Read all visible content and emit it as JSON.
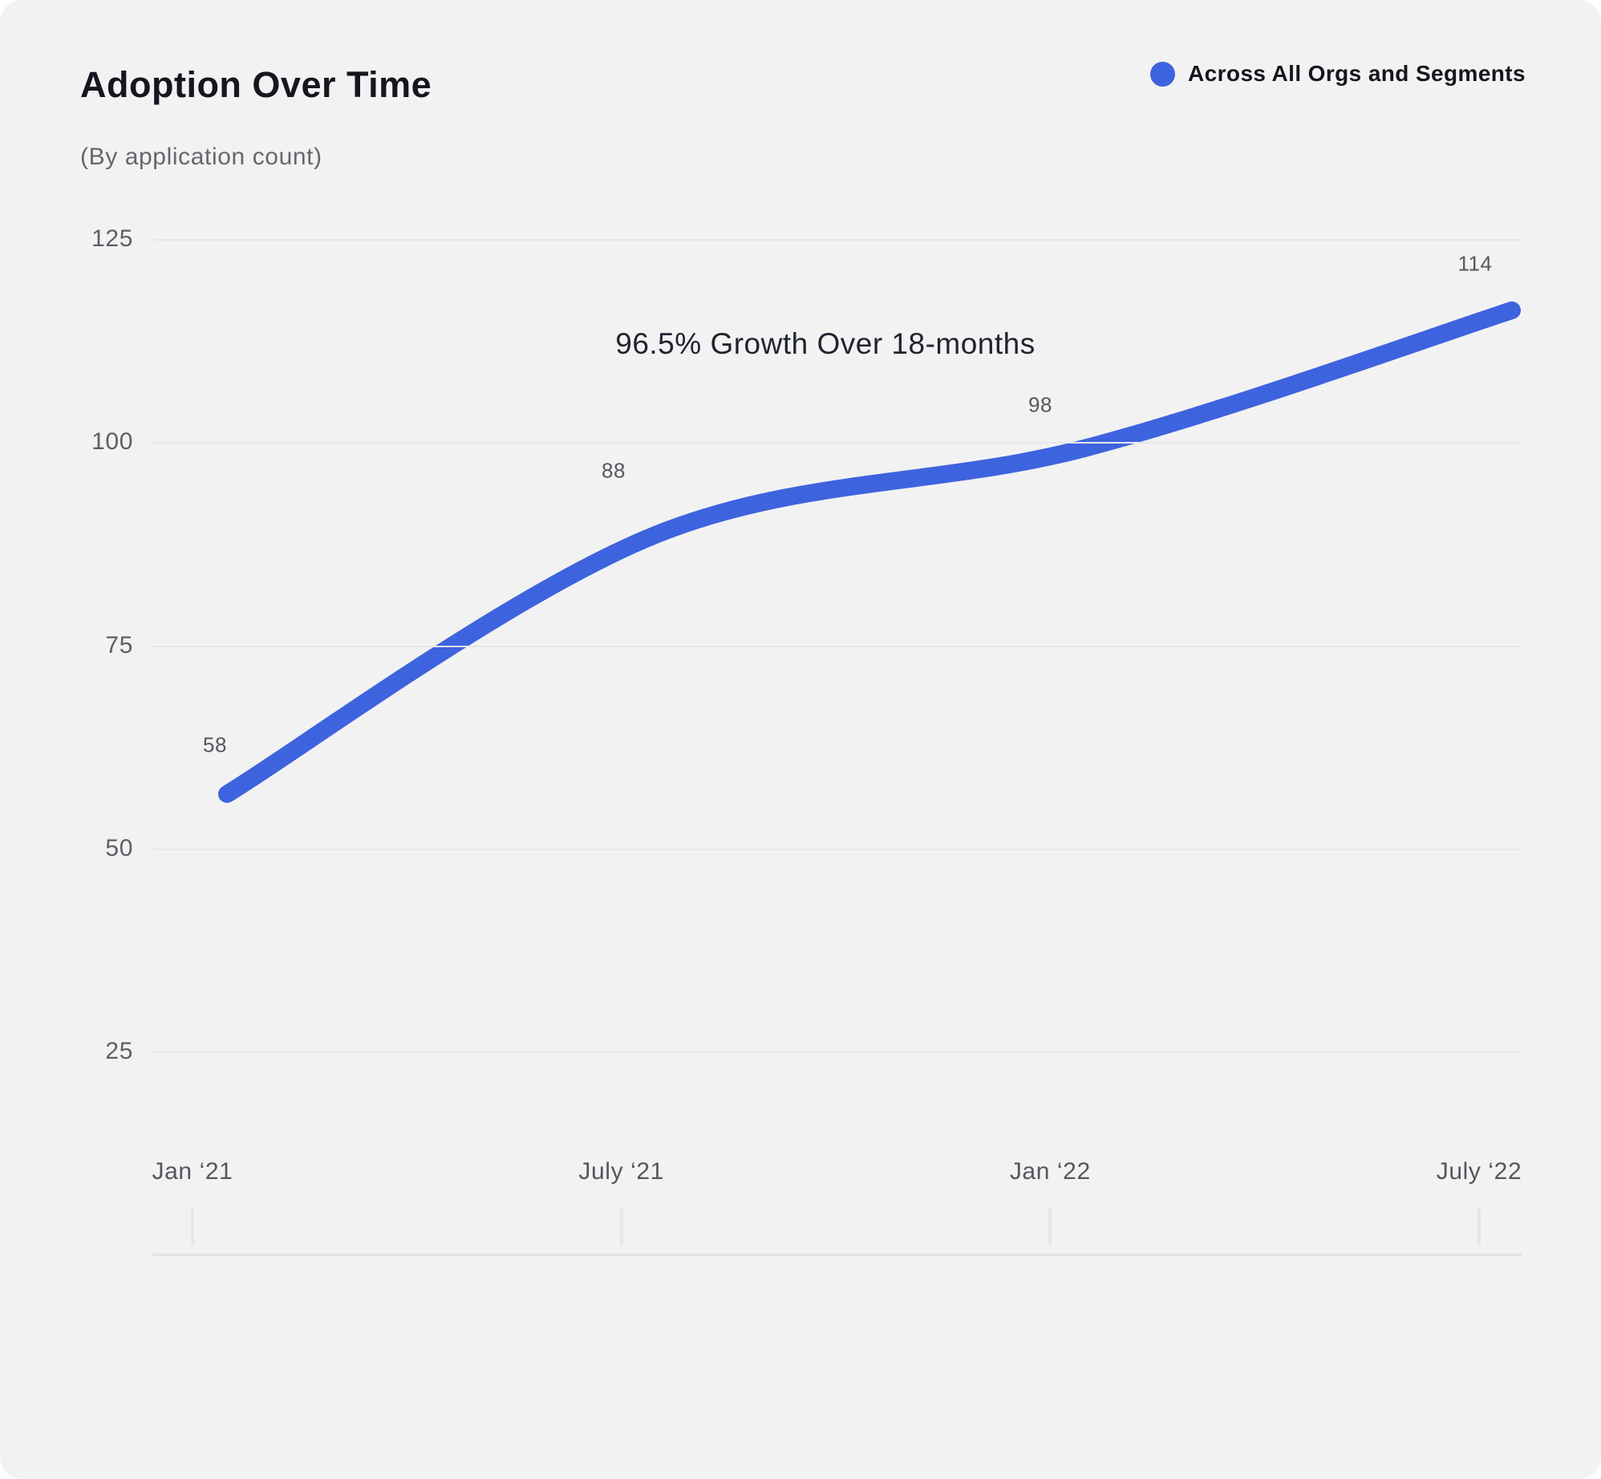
{
  "header": {
    "title": "Adoption Over Time",
    "subtitle": "(By application count)"
  },
  "legend": {
    "label": "Across All Orgs and Segments",
    "dot_color": "#3E63DE"
  },
  "annotation": "96.5% Growth Over 18-months",
  "colors": {
    "line": "#3E63DE",
    "card_background": "#f2f2f3",
    "gridline": "#e7e7e9"
  },
  "chart_data": {
    "type": "line",
    "title": "Adoption Over Time",
    "subtitle": "(By application count)",
    "categories": [
      "Jan ‘21",
      "July ‘21",
      "Jan ‘22",
      "July ‘22"
    ],
    "series": [
      {
        "name": "Across All Orgs and Segments",
        "values": [
          58,
          88,
          98,
          114
        ],
        "color": "#3E63DE"
      }
    ],
    "point_labels": [
      "58",
      "88",
      "98",
      "114"
    ],
    "y_ticks": [
      125,
      100,
      75,
      50,
      25
    ],
    "ylim": [
      15,
      130
    ],
    "xlabel": "",
    "ylabel": "",
    "grid": "horizontal-only",
    "legend_position": "top-right",
    "annotation": "96.5% Growth Over 18-months"
  }
}
